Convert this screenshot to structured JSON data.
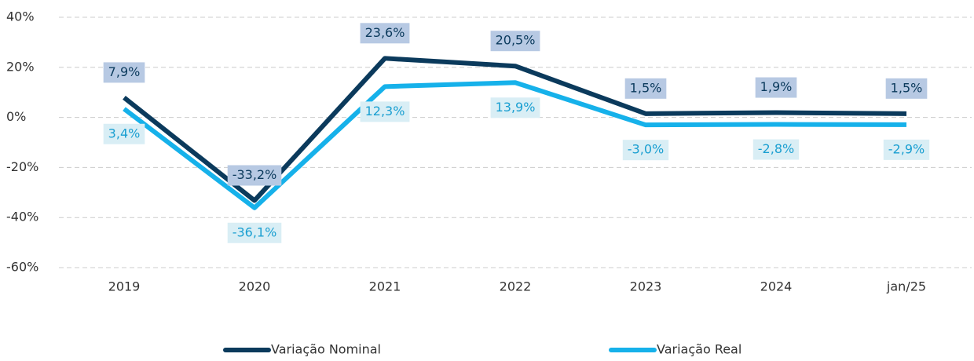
{
  "chart_data": {
    "type": "line",
    "categories": [
      "2019",
      "2020",
      "2021",
      "2022",
      "2023",
      "2024",
      "jan/25"
    ],
    "series": [
      {
        "name": "Variação Nominal",
        "color": "#0b3a5c",
        "label_bg": "#b7c9e3",
        "values": [
          7.9,
          -33.2,
          23.6,
          20.5,
          1.5,
          1.9,
          1.5
        ],
        "value_labels": [
          "7,9%",
          "-33,2%",
          "23,6%",
          "20,5%",
          "1,5%",
          "1,9%",
          "1,5%"
        ]
      },
      {
        "name": "Variação Real",
        "color": "#16b1ea",
        "label_bg": "#d9eef5",
        "values": [
          3.4,
          -36.1,
          12.3,
          13.9,
          -3.0,
          -2.8,
          -2.9
        ],
        "value_labels": [
          "3,4%",
          "-36,1%",
          "12,3%",
          "13,9%",
          "-3,0%",
          "-2,8%",
          "-2,9%"
        ]
      }
    ],
    "ylim": [
      -60,
      40
    ],
    "yticks": [
      {
        "value": -60,
        "label": "-60%"
      },
      {
        "value": -40,
        "label": "-40%"
      },
      {
        "value": -20,
        "label": "-20%"
      },
      {
        "value": 0,
        "label": "0%"
      },
      {
        "value": 20,
        "label": "20%"
      },
      {
        "value": 40,
        "label": "40%"
      }
    ],
    "grid": true
  }
}
